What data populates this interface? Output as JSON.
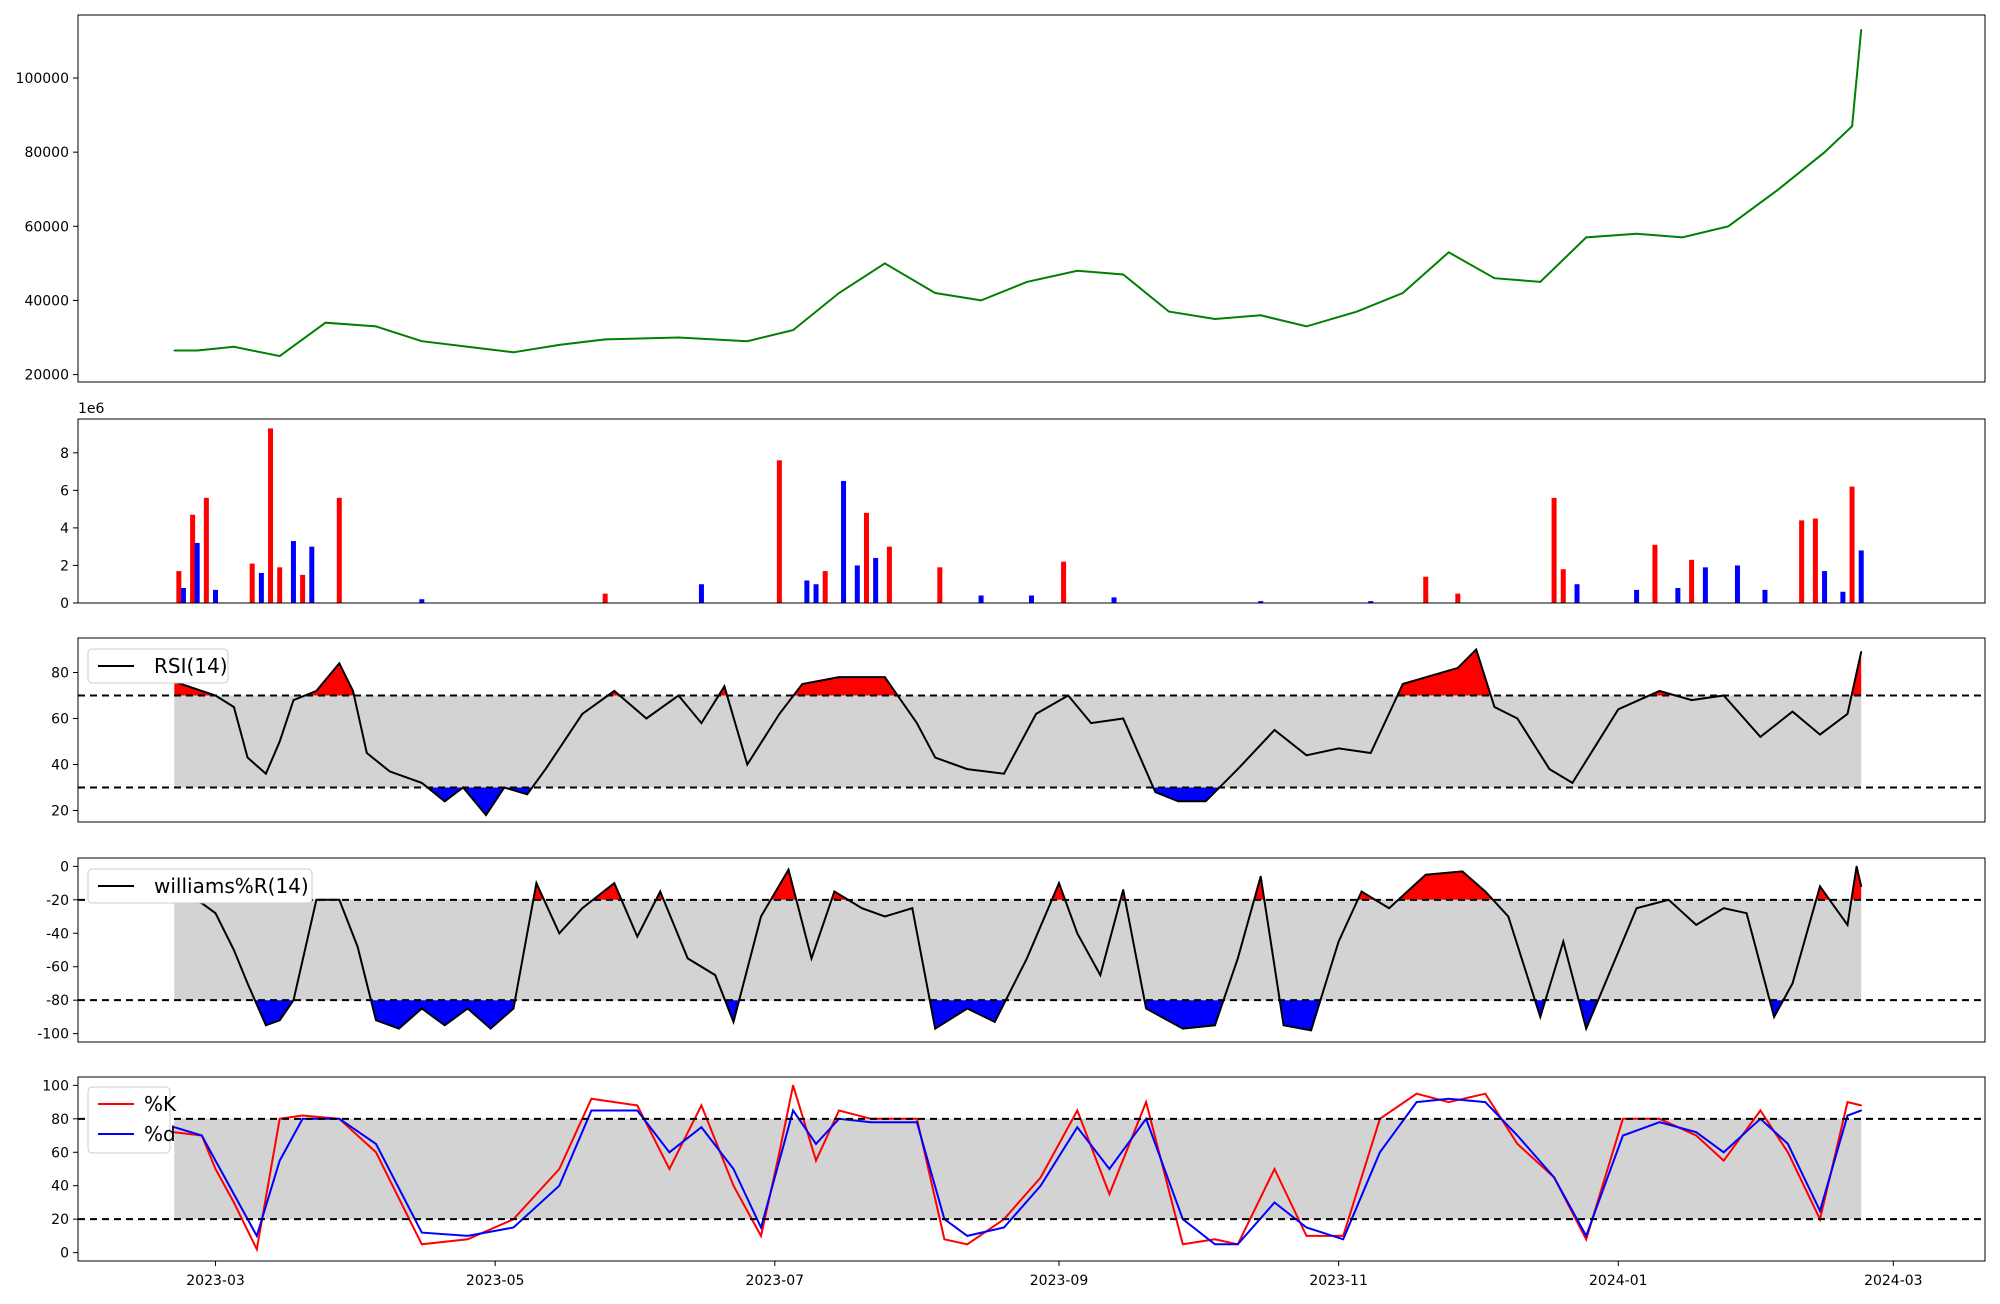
{
  "chart_data": [
    {
      "type": "line",
      "panel": "price",
      "color": "#008000",
      "ylim": [
        18000,
        117000
      ],
      "yticks": [
        20000,
        40000,
        60000,
        80000,
        100000
      ],
      "x_dates": [
        "2023-02-20",
        "2023-02-25",
        "2023-03-05",
        "2023-03-15",
        "2023-03-25",
        "2023-04-05",
        "2023-04-15",
        "2023-04-25",
        "2023-05-05",
        "2023-05-15",
        "2023-05-25",
        "2023-06-10",
        "2023-06-25",
        "2023-07-05",
        "2023-07-15",
        "2023-07-25",
        "2023-08-05",
        "2023-08-15",
        "2023-08-25",
        "2023-09-05",
        "2023-09-15",
        "2023-09-25",
        "2023-10-05",
        "2023-10-15",
        "2023-10-25",
        "2023-11-05",
        "2023-11-15",
        "2023-11-25",
        "2023-12-05",
        "2023-12-15",
        "2023-12-25",
        "2024-01-05",
        "2024-01-15",
        "2024-01-25",
        "2024-02-05",
        "2024-02-15",
        "2024-02-21",
        "2024-02-23"
      ],
      "y_values": [
        26500,
        26500,
        27500,
        25000,
        34000,
        33000,
        29000,
        27500,
        26000,
        28000,
        29500,
        30000,
        29000,
        32000,
        42000,
        50000,
        42000,
        40000,
        45000,
        48000,
        47000,
        37000,
        35000,
        36000,
        33000,
        37000,
        42000,
        53000,
        46000,
        45000,
        57000,
        58000,
        57000,
        60000,
        70000,
        80000,
        87000,
        113000
      ]
    },
    {
      "type": "bar",
      "panel": "volume",
      "scale_label": "1e6",
      "ylim": [
        0,
        9.8
      ],
      "yticks": [
        0,
        2,
        4,
        6,
        8
      ],
      "colors": {
        "up": "#ff0000",
        "down": "#0000ff"
      },
      "x_dates": [
        "2023-02-21",
        "2023-02-22",
        "2023-02-24",
        "2023-02-25",
        "2023-02-27",
        "2023-03-01",
        "2023-03-09",
        "2023-03-11",
        "2023-03-13",
        "2023-03-15",
        "2023-03-18",
        "2023-03-20",
        "2023-03-22",
        "2023-03-28",
        "2023-04-15",
        "2023-05-25",
        "2023-06-15",
        "2023-07-02",
        "2023-07-08",
        "2023-07-10",
        "2023-07-12",
        "2023-07-16",
        "2023-07-19",
        "2023-07-21",
        "2023-07-23",
        "2023-07-26",
        "2023-08-06",
        "2023-08-15",
        "2023-08-26",
        "2023-09-02",
        "2023-09-13",
        "2023-10-15",
        "2023-11-08",
        "2023-11-20",
        "2023-11-27",
        "2023-12-18",
        "2023-12-20",
        "2023-12-23",
        "2024-01-05",
        "2024-01-09",
        "2024-01-14",
        "2024-01-17",
        "2024-01-20",
        "2024-01-27",
        "2024-02-02",
        "2024-02-10",
        "2024-02-13",
        "2024-02-15",
        "2024-02-19",
        "2024-02-21",
        "2024-02-23"
      ],
      "values": [
        1.7,
        0.8,
        4.7,
        3.2,
        5.6,
        0.7,
        2.1,
        1.6,
        9.3,
        1.9,
        3.3,
        1.5,
        3.0,
        5.6,
        0.2,
        0.5,
        1.0,
        7.6,
        1.2,
        1.0,
        1.7,
        6.5,
        2.0,
        4.8,
        2.4,
        3.0,
        1.9,
        0.4,
        0.4,
        2.2,
        0.3,
        0.1,
        0.1,
        1.4,
        0.5,
        5.6,
        1.8,
        1.0,
        0.7,
        3.1,
        0.8,
        2.3,
        1.9,
        2.0,
        0.7,
        4.4,
        4.5,
        1.7,
        0.6,
        6.2,
        2.8
      ],
      "direction": [
        "up",
        "down",
        "up",
        "down",
        "up",
        "down",
        "up",
        "down",
        "up",
        "up",
        "down",
        "up",
        "down",
        "up",
        "down",
        "up",
        "down",
        "up",
        "down",
        "down",
        "up",
        "down",
        "down",
        "up",
        "down",
        "up",
        "up",
        "down",
        "down",
        "up",
        "down",
        "down",
        "down",
        "up",
        "up",
        "up",
        "up",
        "down",
        "down",
        "up",
        "down",
        "up",
        "down",
        "down",
        "down",
        "up",
        "up",
        "down",
        "down",
        "up",
        "down"
      ]
    },
    {
      "type": "line",
      "panel": "rsi",
      "legend": [
        "RSI(14)"
      ],
      "ylim": [
        15,
        95
      ],
      "yticks": [
        20,
        40,
        60,
        80
      ],
      "thresholds": [
        70,
        30
      ],
      "fill_colors": {
        "over": "#ff0000",
        "under": "#0000ff",
        "band": "#d3d3d3"
      },
      "x_dates": [
        "2023-02-20",
        "2023-02-26",
        "2023-03-01",
        "2023-03-05",
        "2023-03-08",
        "2023-03-12",
        "2023-03-15",
        "2023-03-18",
        "2023-03-23",
        "2023-03-28",
        "2023-03-31",
        "2023-04-03",
        "2023-04-08",
        "2023-04-15",
        "2023-04-20",
        "2023-04-24",
        "2023-04-29",
        "2023-05-03",
        "2023-05-08",
        "2023-05-12",
        "2023-05-20",
        "2023-05-27",
        "2023-06-03",
        "2023-06-10",
        "2023-06-15",
        "2023-06-20",
        "2023-06-25",
        "2023-07-02",
        "2023-07-07",
        "2023-07-15",
        "2023-07-25",
        "2023-08-01",
        "2023-08-05",
        "2023-08-12",
        "2023-08-20",
        "2023-08-27",
        "2023-09-03",
        "2023-09-08",
        "2023-09-15",
        "2023-09-22",
        "2023-09-27",
        "2023-10-03",
        "2023-10-10",
        "2023-10-18",
        "2023-10-25",
        "2023-11-01",
        "2023-11-08",
        "2023-11-15",
        "2023-11-27",
        "2023-12-01",
        "2023-12-05",
        "2023-12-10",
        "2023-12-17",
        "2023-12-22",
        "2024-01-01",
        "2024-01-10",
        "2024-01-17",
        "2024-01-24",
        "2024-02-01",
        "2024-02-08",
        "2024-02-14",
        "2024-02-20",
        "2024-02-23"
      ],
      "y_values": [
        76,
        72,
        70,
        65,
        43,
        36,
        50,
        68,
        72,
        84,
        72,
        45,
        37,
        32,
        24,
        30,
        18,
        30,
        27,
        38,
        62,
        72,
        60,
        70,
        58,
        74,
        40,
        62,
        75,
        78,
        78,
        58,
        43,
        38,
        36,
        62,
        70,
        58,
        60,
        28,
        24,
        24,
        38,
        55,
        44,
        47,
        45,
        75,
        82,
        90,
        65,
        60,
        38,
        32,
        64,
        72,
        68,
        70,
        52,
        63,
        53,
        62,
        89
      ]
    },
    {
      "type": "line",
      "panel": "williams",
      "legend": [
        "williams%R(14)"
      ],
      "ylim": [
        -105,
        5
      ],
      "yticks": [
        0,
        -20,
        -40,
        -60,
        -80,
        -100
      ],
      "thresholds": [
        -20,
        -80
      ],
      "fill_colors": {
        "over": "#ff0000",
        "under": "#0000ff",
        "band": "#d3d3d3"
      },
      "x_dates": [
        "2023-02-20",
        "2023-02-26",
        "2023-03-01",
        "2023-03-05",
        "2023-03-08",
        "2023-03-12",
        "2023-03-15",
        "2023-03-18",
        "2023-03-23",
        "2023-03-28",
        "2023-04-01",
        "2023-04-05",
        "2023-04-10",
        "2023-04-15",
        "2023-04-20",
        "2023-04-25",
        "2023-04-30",
        "2023-05-05",
        "2023-05-10",
        "2023-05-15",
        "2023-05-20",
        "2023-05-27",
        "2023-06-01",
        "2023-06-06",
        "2023-06-12",
        "2023-06-18",
        "2023-06-22",
        "2023-06-28",
        "2023-07-04",
        "2023-07-09",
        "2023-07-14",
        "2023-07-20",
        "2023-07-25",
        "2023-07-31",
        "2023-08-05",
        "2023-08-12",
        "2023-08-18",
        "2023-08-25",
        "2023-09-01",
        "2023-09-05",
        "2023-09-10",
        "2023-09-15",
        "2023-09-20",
        "2023-09-28",
        "2023-10-05",
        "2023-10-10",
        "2023-10-15",
        "2023-10-20",
        "2023-10-26",
        "2023-11-01",
        "2023-11-06",
        "2023-11-12",
        "2023-11-20",
        "2023-11-28",
        "2023-12-03",
        "2023-12-08",
        "2023-12-15",
        "2023-12-20",
        "2023-12-25",
        "2024-01-05",
        "2024-01-12",
        "2024-01-18",
        "2024-01-24",
        "2024-01-29",
        "2024-02-04",
        "2024-02-08",
        "2024-02-14",
        "2024-02-20",
        "2024-02-22",
        "2024-02-23"
      ],
      "y_values": [
        -18,
        -22,
        -28,
        -50,
        -70,
        -95,
        -92,
        -80,
        -20,
        -20,
        -48,
        -92,
        -97,
        -85,
        -95,
        -85,
        -97,
        -85,
        -10,
        -40,
        -25,
        -10,
        -42,
        -15,
        -55,
        -65,
        -93,
        -30,
        -2,
        -55,
        -15,
        -25,
        -30,
        -25,
        -97,
        -85,
        -93,
        -55,
        -10,
        -40,
        -65,
        -14,
        -85,
        -97,
        -95,
        -55,
        -6,
        -95,
        -98,
        -45,
        -15,
        -25,
        -5,
        -3,
        -15,
        -30,
        -90,
        -45,
        -97,
        -25,
        -20,
        -35,
        -25,
        -28,
        -90,
        -70,
        -12,
        -35,
        0,
        -12
      ]
    },
    {
      "type": "line",
      "panel": "stochastic",
      "legend": [
        "%K",
        "%d"
      ],
      "colors": [
        "#ff0000",
        "#0000ff"
      ],
      "ylim": [
        -5,
        105
      ],
      "yticks": [
        0,
        20,
        40,
        60,
        80,
        100
      ],
      "thresholds": [
        80,
        20
      ],
      "fill_colors": {
        "band": "#d3d3d3"
      },
      "x_dates": [
        "2023-02-20",
        "2023-02-26",
        "2023-03-01",
        "2023-03-05",
        "2023-03-10",
        "2023-03-15",
        "2023-03-20",
        "2023-03-28",
        "2023-04-05",
        "2023-04-15",
        "2023-04-25",
        "2023-05-05",
        "2023-05-15",
        "2023-05-22",
        "2023-06-01",
        "2023-06-08",
        "2023-06-15",
        "2023-06-22",
        "2023-06-28",
        "2023-07-02",
        "2023-07-05",
        "2023-07-10",
        "2023-07-15",
        "2023-07-22",
        "2023-08-01",
        "2023-08-07",
        "2023-08-12",
        "2023-08-20",
        "2023-08-28",
        "2023-09-05",
        "2023-09-12",
        "2023-09-20",
        "2023-09-28",
        "2023-10-05",
        "2023-10-10",
        "2023-10-18",
        "2023-10-25",
        "2023-11-02",
        "2023-11-10",
        "2023-11-18",
        "2023-11-25",
        "2023-12-03",
        "2023-12-10",
        "2023-12-18",
        "2023-12-25",
        "2024-01-02",
        "2024-01-10",
        "2024-01-18",
        "2024-01-24",
        "2024-02-01",
        "2024-02-07",
        "2024-02-14",
        "2024-02-20",
        "2024-02-23"
      ],
      "k_values": [
        72,
        70,
        50,
        30,
        2,
        80,
        82,
        80,
        60,
        5,
        8,
        20,
        50,
        92,
        88,
        50,
        88,
        40,
        10,
        60,
        100,
        55,
        85,
        80,
        80,
        8,
        5,
        20,
        45,
        85,
        35,
        90,
        5,
        8,
        5,
        50,
        10,
        10,
        80,
        95,
        90,
        95,
        65,
        45,
        8,
        80,
        80,
        70,
        55,
        85,
        60,
        20,
        90,
        88
      ],
      "d_values": [
        75,
        70,
        55,
        35,
        10,
        55,
        80,
        80,
        65,
        12,
        10,
        15,
        40,
        85,
        85,
        60,
        75,
        50,
        15,
        55,
        85,
        65,
        80,
        78,
        78,
        20,
        10,
        15,
        40,
        75,
        50,
        80,
        20,
        5,
        5,
        30,
        15,
        8,
        60,
        90,
        92,
        90,
        70,
        45,
        10,
        70,
        78,
        72,
        60,
        80,
        65,
        25,
        82,
        85
      ]
    }
  ],
  "x_axis": {
    "tick_labels": [
      "2023-03",
      "2023-05",
      "2023-07",
      "2023-09",
      "2023-11",
      "2024-01",
      "2024-03"
    ],
    "tick_dates": [
      "2023-03-01",
      "2023-05-01",
      "2023-07-01",
      "2023-09-01",
      "2023-11-01",
      "2024-01-01",
      "2024-03-01"
    ],
    "range": [
      "2023-01-30",
      "2024-03-21"
    ]
  }
}
